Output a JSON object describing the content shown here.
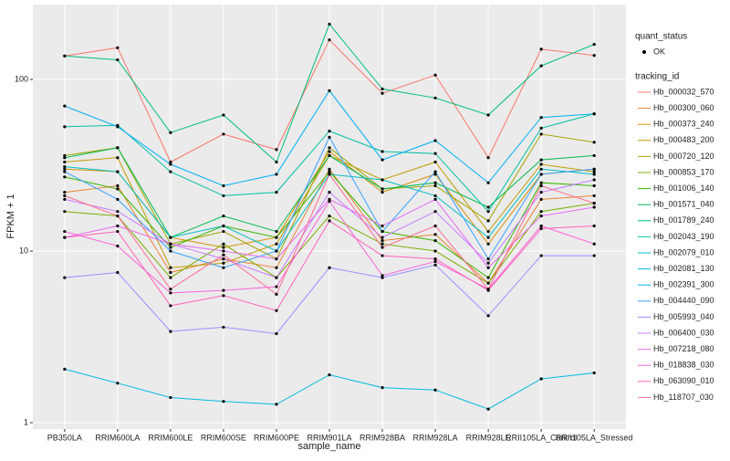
{
  "chart_data": {
    "type": "line",
    "log_y": true,
    "grid": true,
    "x_label": "sample_name",
    "y_label": "FPKM + 1",
    "categories": [
      "PB350LA",
      "RRIM600LA",
      "RRIM600LE",
      "RRIM600SE",
      "RRIM600PE",
      "RRIM901LA",
      "RRIM928BA",
      "RRIM928LA",
      "RRIM928LE",
      "RRII105LA_Control",
      "RRII105LA_Stressed"
    ],
    "ylim": [
      0.918,
      273
    ],
    "yticks": [
      1,
      10,
      100
    ],
    "point_legend_title": "quant_status",
    "point_legend_label": "OK",
    "legend_title": "tracking_id",
    "series": [
      {
        "name": "Hb_000032_570",
        "color": "#F8766D",
        "values": [
          137,
          153,
          33,
          48,
          39,
          170,
          83,
          106,
          35,
          150,
          138
        ]
      },
      {
        "name": "Hb_000300_060",
        "color": "#EA8331",
        "values": [
          22,
          24,
          7.5,
          9,
          8,
          30,
          11.5,
          12.5,
          6.5,
          20,
          21
        ]
      },
      {
        "name": "Hb_000373_240",
        "color": "#D89000",
        "values": [
          30,
          29,
          12,
          10.5,
          12,
          38,
          22,
          28,
          11,
          28,
          30
        ]
      },
      {
        "name": "Hb_000483_200",
        "color": "#C09B00",
        "values": [
          33,
          35,
          8,
          8.5,
          11,
          36,
          26,
          33,
          13,
          32,
          29
        ]
      },
      {
        "name": "Hb_000720_120",
        "color": "#A3A500",
        "values": [
          36,
          40,
          11,
          13,
          9,
          40,
          23,
          24,
          15,
          48,
          43
        ]
      },
      {
        "name": "Hb_000853_170",
        "color": "#7CAE00",
        "values": [
          17,
          16,
          7,
          11,
          7,
          16,
          11,
          10,
          6.5,
          17,
          19
        ]
      },
      {
        "name": "Hb_001006_140",
        "color": "#39B600",
        "values": [
          27,
          23,
          10.5,
          14,
          12,
          29,
          13,
          11.5,
          7,
          25,
          24
        ]
      },
      {
        "name": "Hb_001571_040",
        "color": "#00BB4E",
        "values": [
          35,
          40,
          12,
          16,
          13,
          36,
          23,
          25,
          18,
          34,
          36
        ]
      },
      {
        "name": "Hb_001789_240",
        "color": "#00BF7D",
        "values": [
          137,
          130,
          49,
          62,
          33,
          210,
          88,
          78,
          62,
          120,
          160
        ]
      },
      {
        "name": "Hb_002043_190",
        "color": "#00C1A3",
        "values": [
          53,
          54,
          29,
          21,
          22,
          50,
          38,
          37,
          17,
          52,
          63
        ]
      },
      {
        "name": "Hb_002079_010",
        "color": "#00BFC4",
        "values": [
          31,
          29,
          12,
          14,
          10,
          28,
          26,
          21,
          12,
          30,
          28
        ]
      },
      {
        "name": "Hb_002081_130",
        "color": "#00BAE0",
        "values": [
          2.05,
          1.7,
          1.4,
          1.33,
          1.28,
          1.9,
          1.6,
          1.55,
          1.2,
          1.8,
          1.95
        ]
      },
      {
        "name": "Hb_002391_300",
        "color": "#00B0F6",
        "values": [
          70,
          53,
          32,
          24,
          28,
          86,
          34,
          44,
          25,
          60,
          63
        ]
      },
      {
        "name": "Hb_004440_090",
        "color": "#35A2FF",
        "values": [
          29,
          20,
          10,
          8,
          10,
          46,
          13,
          29,
          9,
          28,
          30
        ]
      },
      {
        "name": "Hb_005993_040",
        "color": "#9590FF",
        "values": [
          7,
          7.5,
          3.4,
          3.6,
          3.3,
          8,
          7,
          8.3,
          4.2,
          9.4,
          9.4
        ]
      },
      {
        "name": "Hb_006400_030",
        "color": "#C77CFF",
        "values": [
          20,
          17,
          11,
          9,
          7,
          22,
          12,
          17,
          8.5,
          22,
          26
        ]
      },
      {
        "name": "Hb_007218_080",
        "color": "#E76BF3",
        "values": [
          12,
          14,
          11,
          10,
          9,
          20,
          14,
          20,
          8,
          16,
          18
        ]
      },
      {
        "name": "Hb_018838_030",
        "color": "#FA62DB",
        "values": [
          13,
          10.7,
          5.7,
          5.9,
          6.2,
          19.5,
          7.2,
          8.7,
          6,
          14,
          11
        ]
      },
      {
        "name": "Hb_063090_010",
        "color": "#FF62BC",
        "values": [
          12,
          13,
          4.8,
          5.5,
          4.5,
          15,
          9.4,
          9,
          5.9,
          13.5,
          14
        ]
      },
      {
        "name": "Hb_118707_030",
        "color": "#FF6C91",
        "values": [
          21,
          16,
          6,
          9.5,
          5.6,
          28,
          10.5,
          14,
          6,
          24,
          19
        ]
      }
    ]
  }
}
